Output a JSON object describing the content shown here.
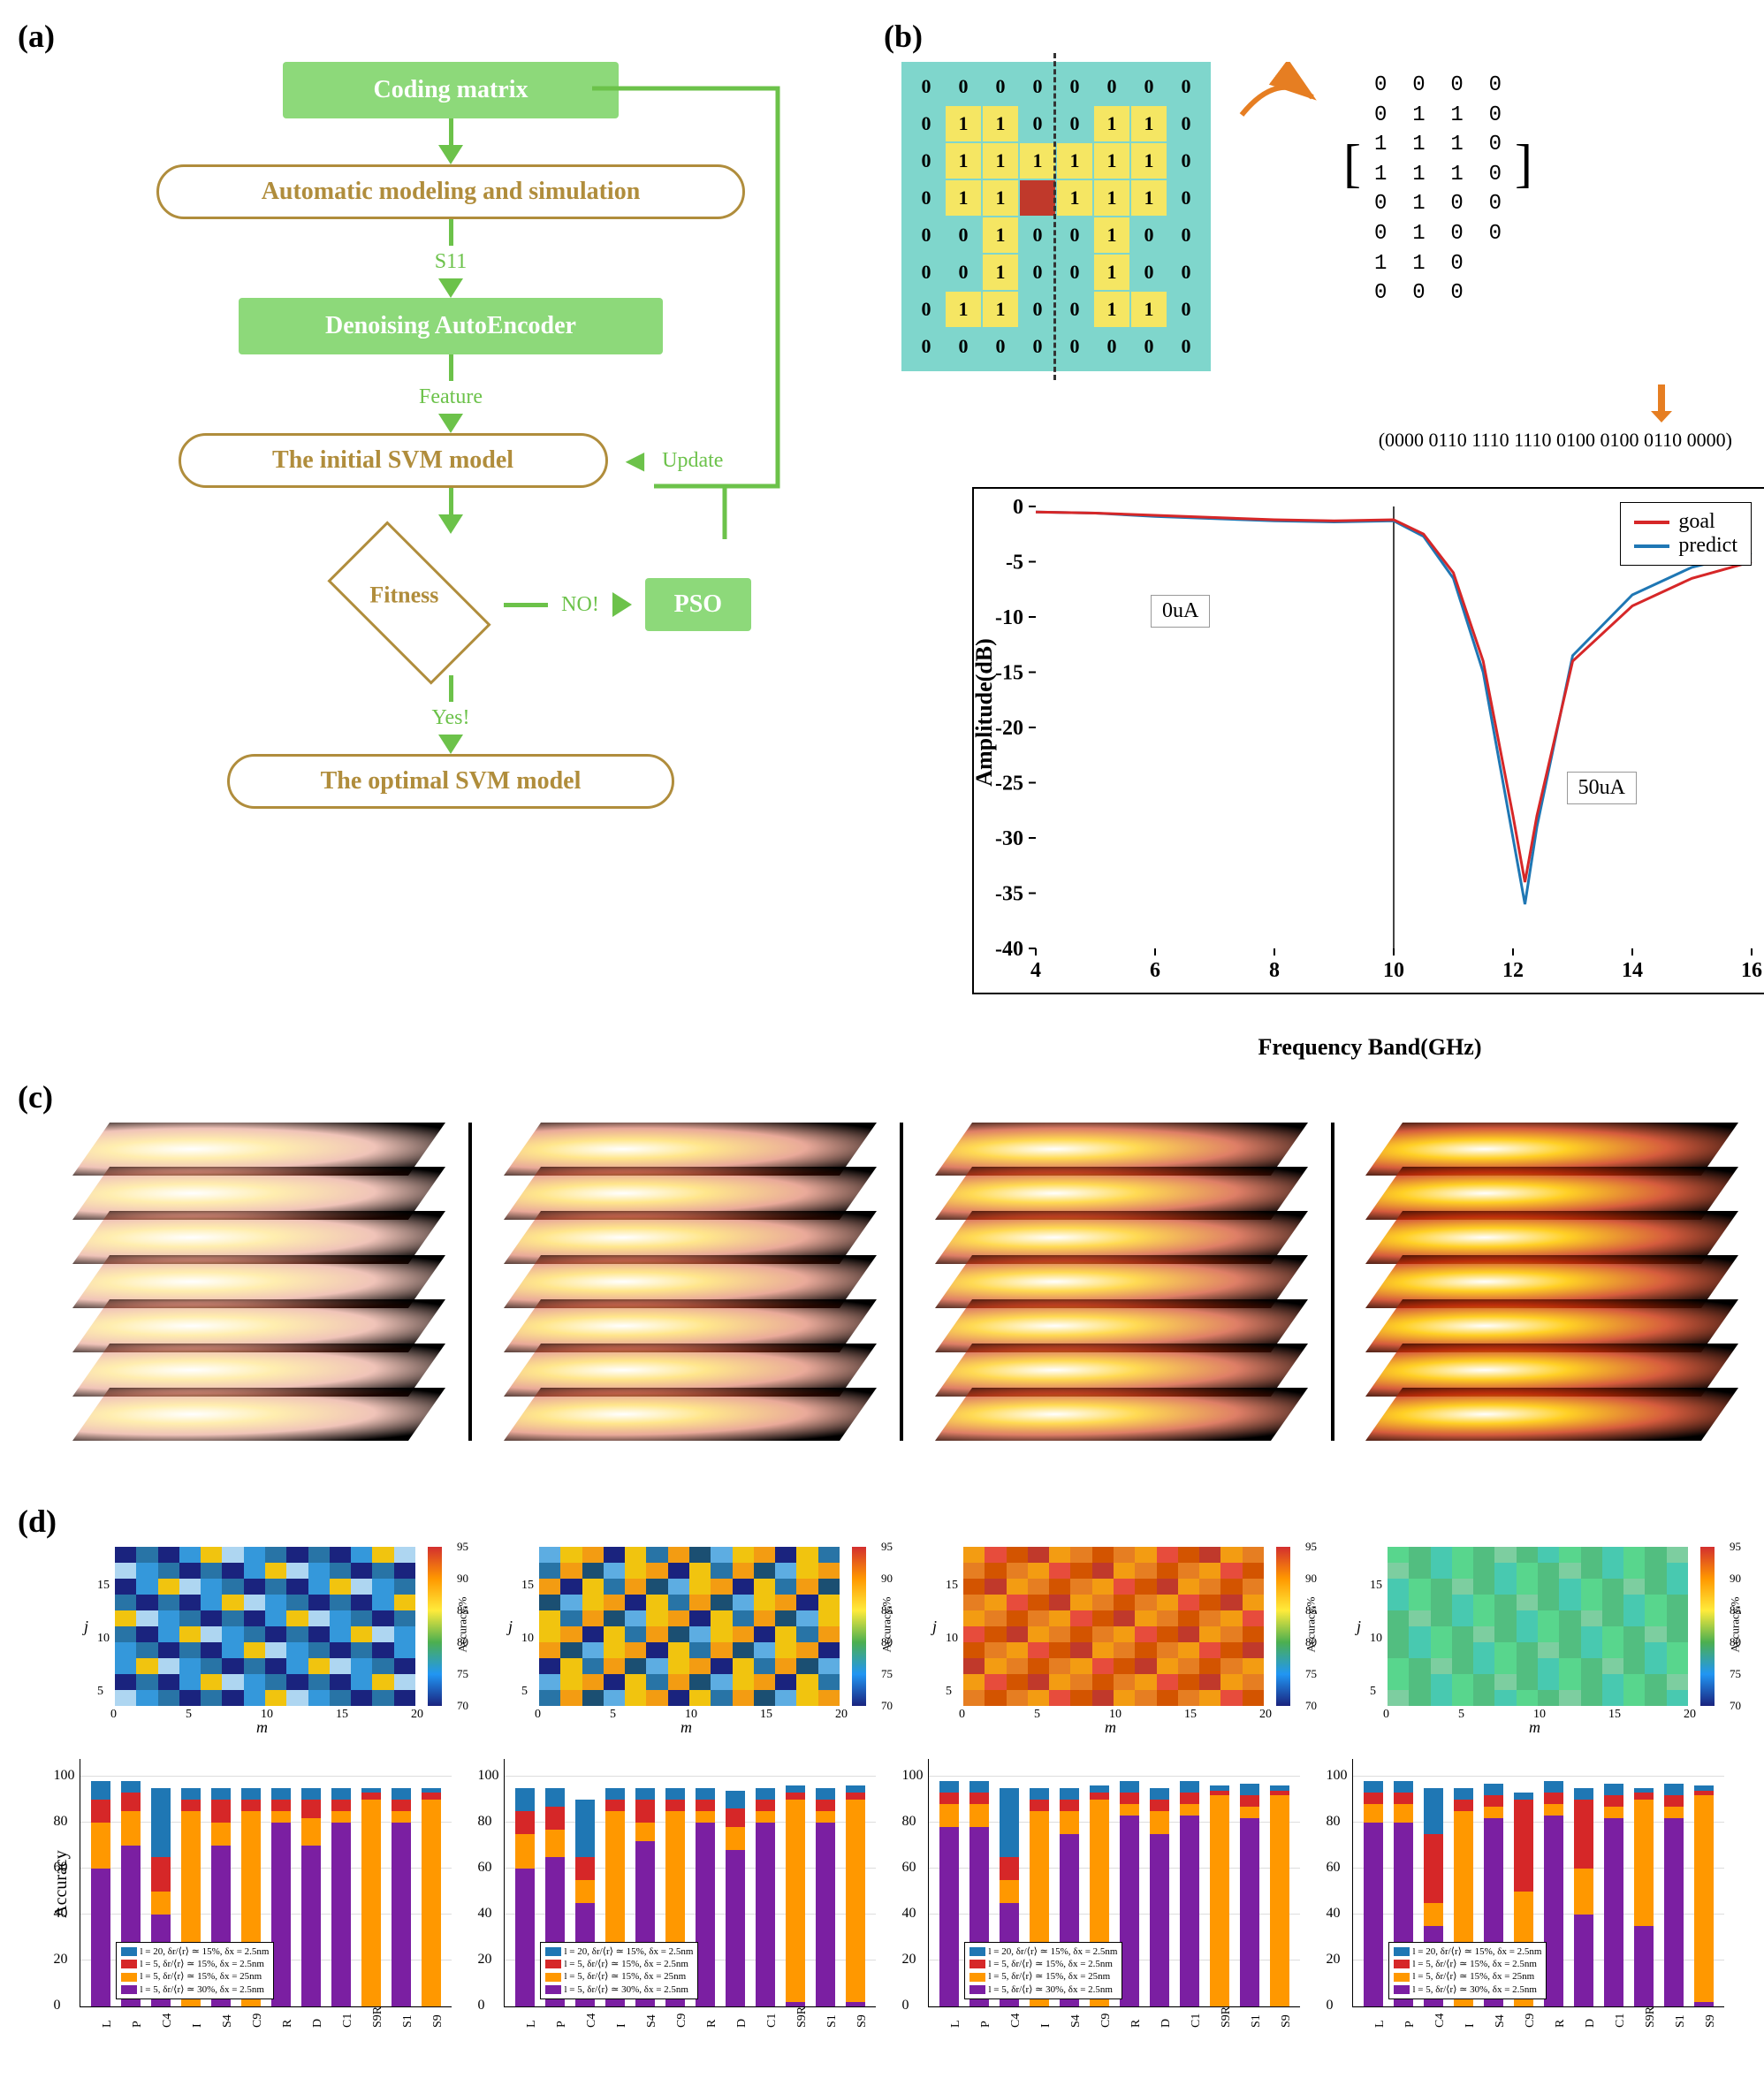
{
  "panel_labels": {
    "a": "(a)",
    "b": "(b)",
    "c": "(c)",
    "d": "(d)"
  },
  "flowchart": {
    "nodes": {
      "coding": "Coding matrix",
      "auto": "Automatic modeling and simulation",
      "s11": "S11",
      "denoising": "Denoising AutoEncoder",
      "feature": "Feature",
      "svm_init": "The initial SVM model",
      "update": "Update",
      "fitness": "Fitness",
      "no": "NO!",
      "pso": "PSO",
      "yes": "Yes!",
      "svm_opt": "The optimal SVM model"
    },
    "colors": {
      "green_box_bg": "#8dd97a",
      "green_box_text": "#ffffff",
      "outline_color": "#b08d3c",
      "arrow_color": "#6cc24a"
    }
  },
  "panel_b": {
    "matrix_grid": [
      [
        0,
        0,
        0,
        0,
        0,
        0,
        0,
        0
      ],
      [
        0,
        1,
        1,
        0,
        0,
        1,
        1,
        0
      ],
      [
        0,
        1,
        1,
        1,
        1,
        1,
        1,
        0
      ],
      [
        0,
        1,
        1,
        1,
        1,
        1,
        1,
        0
      ],
      [
        0,
        0,
        1,
        0,
        0,
        1,
        0,
        0
      ],
      [
        0,
        0,
        1,
        0,
        0,
        1,
        0,
        0
      ],
      [
        0,
        1,
        1,
        0,
        0,
        1,
        1,
        0
      ],
      [
        0,
        0,
        0,
        0,
        0,
        0,
        0,
        0
      ]
    ],
    "red_cell": [
      3,
      3
    ],
    "half_matrix_rows": [
      "0  0  0  0",
      "0  1  1  0",
      "1  1  1  0",
      "1  1  1  0",
      "0  1  0  0",
      "0  1  0  0",
      "1  1  0",
      "0  0  0"
    ],
    "bitstring": "(0000 0110 1110 1110 0100 0100 0110 0000)",
    "colors": {
      "grid_bg": "#7fd6cc",
      "cell1": "#f5e663",
      "cell_red": "#c0392b"
    },
    "chart": {
      "type": "line",
      "xlabel": "Frequency Band(GHz)",
      "ylabel": "Amplitude(dB)",
      "xlim": [
        4,
        16
      ],
      "ylim": [
        -40,
        0
      ],
      "xticks": [
        4,
        6,
        8,
        10,
        12,
        14,
        16
      ],
      "yticks": [
        -40,
        -35,
        -30,
        -25,
        -20,
        -15,
        -10,
        -5,
        0
      ],
      "annotations": {
        "ua0": "0uA",
        "ua50": "50uA"
      },
      "legend": [
        {
          "label": "goal",
          "color": "#d62728"
        },
        {
          "label": "predict",
          "color": "#1f77b4"
        }
      ],
      "series_goal_x": [
        4,
        5,
        6,
        7,
        8,
        9,
        10,
        10.5,
        11,
        11.5,
        12,
        12.2,
        12.4,
        13,
        14,
        15,
        16
      ],
      "series_goal_y": [
        -0.5,
        -0.6,
        -0.8,
        -1.0,
        -1.2,
        -1.3,
        -1.2,
        -2.5,
        -6,
        -14,
        -28,
        -34,
        -28,
        -14,
        -9,
        -6.5,
        -5
      ],
      "series_predict_x": [
        4,
        5,
        6,
        7,
        8,
        9,
        10,
        10.5,
        11,
        11.5,
        12,
        12.2,
        12.4,
        13,
        14,
        15,
        16
      ],
      "series_predict_y": [
        -0.5,
        -0.6,
        -0.9,
        -1.1,
        -1.3,
        -1.4,
        -1.3,
        -2.7,
        -6.5,
        -15,
        -30,
        -36,
        -29,
        -13.5,
        -8,
        -5.5,
        -4.2
      ],
      "vline_x": 10
    }
  },
  "panel_c": {
    "type": "field_visualization",
    "n_stacks": 4,
    "layers_per_stack": 7,
    "colormap": "hot",
    "progression": "increasing brightness left to right"
  },
  "panel_d": {
    "heatmaps": {
      "type": "heatmap",
      "nrows": 4,
      "ncols_grid": 20,
      "nrows_grid": 18,
      "xlabel": "m",
      "ylabel": "j",
      "xticks": [
        0,
        5,
        10,
        15,
        20
      ],
      "yticks": [
        5,
        10,
        15
      ],
      "colorbar_label": "Accuracy,%",
      "colorbar_ticks": [
        70,
        75,
        80,
        85,
        90,
        95
      ],
      "colormap_stops": [
        "#1a237e",
        "#2196f3",
        "#4caf50",
        "#ffeb3b",
        "#ff9800",
        "#d32f2f"
      ],
      "panel_dominant": [
        "blue-mixed",
        "blue-yellow",
        "orange-red",
        "green-uniform"
      ]
    },
    "barcharts": {
      "type": "stacked-bar",
      "ylabel": "Accuracy",
      "yticks": [
        0,
        20,
        40,
        60,
        80,
        100
      ],
      "categories": [
        "L",
        "P",
        "C4",
        "I",
        "S4",
        "C9",
        "R",
        "D",
        "C1",
        "S9R",
        "S1",
        "S9"
      ],
      "legend": [
        {
          "label": "l = 20, δr/⟨r⟩ ≃ 15%, δx = 2.5nm",
          "color": "#1f77b4"
        },
        {
          "label": "l = 5, δr/⟨r⟩ ≃ 15%, δx = 2.5nm",
          "color": "#d62728"
        },
        {
          "label": "l = 5, δr/⟨r⟩ ≃ 15%, δx = 25nm",
          "color": "#ff9800"
        },
        {
          "label": "l = 5, δr/⟨r⟩ ≃ 30%, δx = 2.5nm",
          "color": "#7b1fa2"
        }
      ],
      "panels": [
        {
          "stacked": [
            [
              8,
              10,
              20,
              60
            ],
            [
              5,
              8,
              15,
              70
            ],
            [
              30,
              15,
              10,
              40
            ],
            [
              5,
              5,
              85,
              0
            ],
            [
              5,
              10,
              10,
              70
            ],
            [
              5,
              5,
              85,
              0
            ],
            [
              5,
              5,
              5,
              80
            ],
            [
              5,
              8,
              12,
              70
            ],
            [
              5,
              5,
              5,
              80
            ],
            [
              2,
              3,
              90,
              0
            ],
            [
              5,
              5,
              5,
              80
            ],
            [
              2,
              3,
              90,
              0
            ]
          ]
        },
        {
          "stacked": [
            [
              10,
              10,
              15,
              60
            ],
            [
              8,
              10,
              12,
              65
            ],
            [
              25,
              10,
              10,
              45
            ],
            [
              5,
              5,
              80,
              5
            ],
            [
              5,
              10,
              8,
              72
            ],
            [
              5,
              5,
              80,
              5
            ],
            [
              5,
              5,
              5,
              80
            ],
            [
              8,
              8,
              10,
              68
            ],
            [
              5,
              5,
              5,
              80
            ],
            [
              3,
              3,
              88,
              2
            ],
            [
              5,
              5,
              5,
              80
            ],
            [
              3,
              3,
              88,
              2
            ]
          ]
        },
        {
          "stacked": [
            [
              5,
              5,
              10,
              78
            ],
            [
              5,
              5,
              10,
              78
            ],
            [
              30,
              10,
              10,
              45
            ],
            [
              5,
              5,
              85,
              0
            ],
            [
              5,
              5,
              10,
              75
            ],
            [
              3,
              3,
              90,
              0
            ],
            [
              5,
              5,
              5,
              83
            ],
            [
              5,
              5,
              10,
              75
            ],
            [
              5,
              5,
              5,
              83
            ],
            [
              2,
              2,
              92,
              0
            ],
            [
              5,
              5,
              5,
              82
            ],
            [
              2,
              2,
              92,
              0
            ]
          ]
        },
        {
          "stacked": [
            [
              5,
              5,
              8,
              80
            ],
            [
              5,
              5,
              8,
              80
            ],
            [
              20,
              30,
              10,
              35
            ],
            [
              5,
              5,
              85,
              0
            ],
            [
              5,
              5,
              5,
              82
            ],
            [
              3,
              40,
              50,
              0
            ],
            [
              5,
              5,
              5,
              83
            ],
            [
              5,
              30,
              20,
              40
            ],
            [
              5,
              5,
              5,
              82
            ],
            [
              2,
              3,
              55,
              35
            ],
            [
              5,
              5,
              5,
              82
            ],
            [
              2,
              2,
              90,
              2
            ]
          ]
        }
      ]
    }
  }
}
